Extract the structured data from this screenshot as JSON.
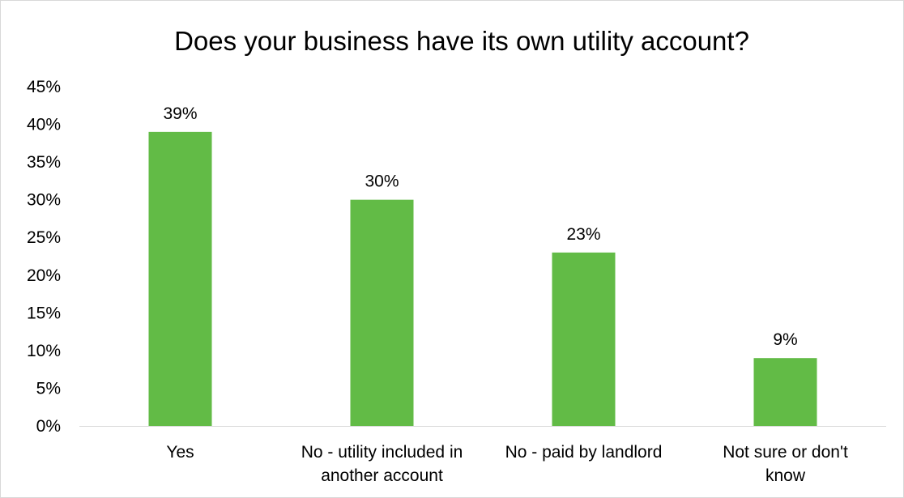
{
  "chart_data": {
    "type": "bar",
    "title": "Does your business have its own utility account?",
    "xlabel": "",
    "ylabel": "",
    "categories": [
      "Yes",
      "No - utility included in another account",
      "No - paid by landlord",
      "Not sure or don't know"
    ],
    "category_lines": [
      [
        "Yes"
      ],
      [
        "No - utility included in",
        "another account"
      ],
      [
        "No - paid by landlord"
      ],
      [
        "Not sure or don't",
        "know"
      ]
    ],
    "values": [
      39,
      30,
      23,
      9
    ],
    "data_labels": [
      "39%",
      "30%",
      "23%",
      "9%"
    ],
    "ylim": [
      0,
      45
    ],
    "y_ticks": [
      0,
      5,
      10,
      15,
      20,
      25,
      30,
      35,
      40,
      45
    ],
    "y_tick_labels": [
      "0%",
      "5%",
      "10%",
      "15%",
      "20%",
      "25%",
      "30%",
      "35%",
      "40%",
      "45%"
    ],
    "grid": false,
    "legend": "none",
    "bar_color": "#62bb46",
    "axis_color": "#d9d9d9"
  }
}
